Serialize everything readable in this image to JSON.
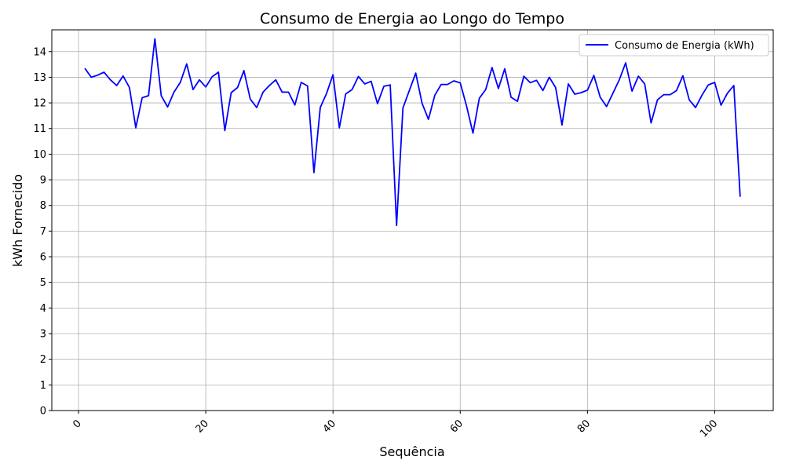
{
  "chart_data": {
    "type": "line",
    "title": "Consumo de Energia ao Longo do Tempo",
    "xlabel": "Sequência",
    "ylabel": "kWh Fornecido",
    "xlim": [
      -4.2,
      109.2
    ],
    "ylim": [
      0,
      14.85
    ],
    "xticks": [
      0,
      20,
      40,
      60,
      80,
      100
    ],
    "yticks": [
      0,
      1,
      2,
      3,
      4,
      5,
      6,
      7,
      8,
      9,
      10,
      11,
      12,
      13,
      14
    ],
    "grid": true,
    "legend_position": "top-right",
    "series": [
      {
        "name": "Consumo de Energia (kWh)",
        "color": "#0000ff",
        "x": [
          1,
          2,
          3,
          4,
          5,
          6,
          7,
          8,
          9,
          10,
          11,
          12,
          13,
          14,
          15,
          16,
          17,
          18,
          19,
          20,
          21,
          22,
          23,
          24,
          25,
          26,
          27,
          28,
          29,
          30,
          31,
          32,
          33,
          34,
          35,
          36,
          37,
          38,
          39,
          40,
          41,
          42,
          43,
          44,
          45,
          46,
          47,
          48,
          49,
          50,
          51,
          52,
          53,
          54,
          55,
          56,
          57,
          58,
          59,
          60,
          61,
          62,
          63,
          64,
          65,
          66,
          67,
          68,
          69,
          70,
          71,
          72,
          73,
          74,
          75,
          76,
          77,
          78,
          79,
          80,
          81,
          82,
          83,
          84,
          85,
          86,
          87,
          88,
          89,
          90,
          91,
          92,
          93,
          94,
          95,
          96,
          97,
          98,
          99,
          100,
          101,
          102,
          103,
          104
        ],
        "y": [
          13.35,
          13.0,
          13.08,
          13.2,
          12.9,
          12.68,
          13.05,
          12.6,
          11.03,
          12.2,
          12.28,
          14.5,
          12.28,
          11.84,
          12.42,
          12.8,
          13.52,
          12.52,
          12.9,
          12.62,
          13.02,
          13.2,
          10.92,
          12.4,
          12.6,
          13.26,
          12.15,
          11.82,
          12.42,
          12.68,
          12.9,
          12.42,
          12.42,
          11.92,
          12.8,
          12.66,
          9.28,
          11.82,
          12.38,
          13.1,
          11.03,
          12.35,
          12.52,
          13.03,
          12.74,
          12.84,
          11.97,
          12.65,
          12.7,
          7.22,
          11.8,
          12.48,
          13.16,
          11.98,
          11.36,
          12.3,
          12.72,
          12.72,
          12.86,
          12.78,
          11.87,
          10.82,
          12.18,
          12.52,
          13.38,
          12.56,
          13.33,
          12.22,
          12.06,
          13.04,
          12.79,
          12.88,
          12.48,
          13.0,
          12.6,
          11.14,
          12.74,
          12.34,
          12.4,
          12.5,
          13.07,
          12.22,
          11.86,
          12.38,
          12.9,
          13.56,
          12.46,
          13.04,
          12.74,
          11.22,
          12.12,
          12.32,
          12.32,
          12.48,
          13.06,
          12.12,
          11.82,
          12.3,
          12.7,
          12.8,
          11.91,
          12.38,
          12.68,
          8.34
        ]
      }
    ]
  }
}
